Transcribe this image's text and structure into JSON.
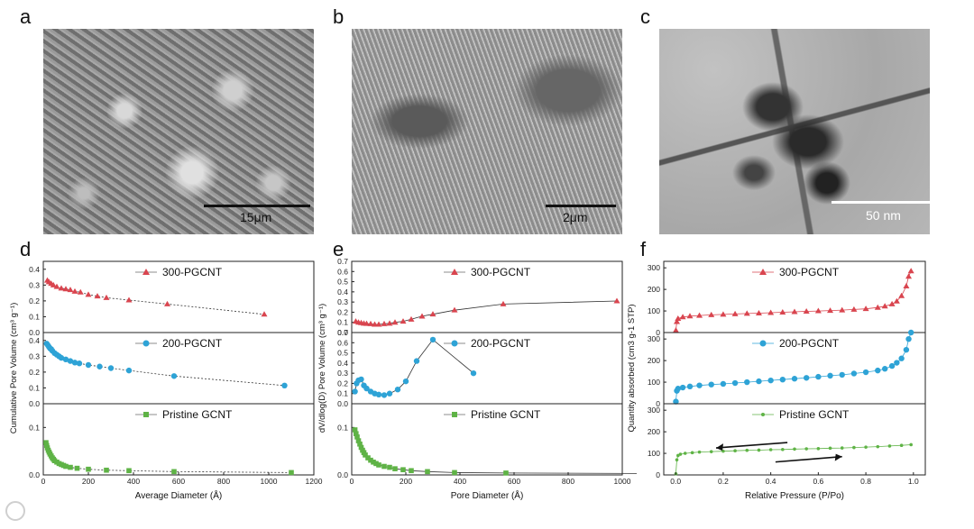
{
  "panels": {
    "a": "a",
    "b": "b",
    "c": "c",
    "d": "d",
    "e": "e",
    "f": "f"
  },
  "images": {
    "a": {
      "scale_label": "15μm",
      "bg": "#8a8a8a"
    },
    "b": {
      "scale_label": "2μm",
      "bg": "#7e7e7e"
    },
    "c": {
      "scale_label": "50 nm",
      "bg": "#b4b4b4"
    }
  },
  "colors": {
    "red": "#d9454f",
    "blue": "#2ea3d6",
    "green": "#5fb346"
  },
  "chart_data": [
    {
      "id": "d",
      "type": "scatter",
      "xlabel": "Average Diameter (Å)",
      "ylabel": "Cumulative Pore Volume (cm³ g⁻¹)",
      "xlim": [
        0,
        1200
      ],
      "xticks": [
        "0",
        "200",
        "400",
        "600",
        "800",
        "1000",
        "1200"
      ],
      "panels": [
        {
          "name": "300-PGCNT",
          "color": "#d9454f",
          "marker": "triangle",
          "ylim": [
            0,
            0.45
          ],
          "yticks": [
            "0.0",
            "0.1",
            "0.2",
            "0.3",
            "0.4"
          ],
          "x": [
            18,
            25,
            35,
            45,
            60,
            80,
            100,
            120,
            140,
            165,
            200,
            240,
            280,
            380,
            550,
            980
          ],
          "y": [
            0.33,
            0.32,
            0.31,
            0.3,
            0.29,
            0.28,
            0.275,
            0.27,
            0.26,
            0.255,
            0.24,
            0.23,
            0.22,
            0.205,
            0.18,
            0.115
          ]
        },
        {
          "name": "200-PGCNT",
          "color": "#2ea3d6",
          "marker": "circle",
          "ylim": [
            0,
            0.45
          ],
          "yticks": [
            "0.0",
            "0.1",
            "0.2",
            "0.3",
            "0.4"
          ],
          "x": [
            15,
            20,
            25,
            30,
            35,
            40,
            50,
            60,
            70,
            80,
            100,
            120,
            140,
            160,
            200,
            250,
            300,
            380,
            580,
            1070
          ],
          "y": [
            0.38,
            0.37,
            0.36,
            0.35,
            0.345,
            0.335,
            0.32,
            0.31,
            0.3,
            0.29,
            0.28,
            0.27,
            0.26,
            0.255,
            0.245,
            0.235,
            0.225,
            0.21,
            0.175,
            0.115
          ]
        },
        {
          "name": "Pristine GCNT",
          "color": "#5fb346",
          "marker": "square",
          "ylim": [
            0,
            0.15
          ],
          "yticks": [
            "0.0",
            "0.1"
          ],
          "x": [
            12,
            15,
            18,
            22,
            26,
            30,
            35,
            40,
            45,
            50,
            60,
            70,
            80,
            90,
            100,
            120,
            150,
            200,
            280,
            380,
            580,
            1100
          ],
          "y": [
            0.068,
            0.062,
            0.057,
            0.052,
            0.048,
            0.044,
            0.04,
            0.036,
            0.033,
            0.03,
            0.027,
            0.024,
            0.022,
            0.02,
            0.018,
            0.016,
            0.014,
            0.012,
            0.01,
            0.009,
            0.007,
            0.005
          ]
        }
      ]
    },
    {
      "id": "e",
      "type": "line",
      "xlabel": "Pore Diameter (Å)",
      "ylabel": "dV/dlog(D) Pore Volume (cm³ g⁻¹)",
      "xlim": [
        0,
        1000
      ],
      "xticks": [
        "0",
        "200",
        "400",
        "600",
        "800",
        "1000"
      ],
      "panels": [
        {
          "name": "300-PGCNT",
          "color": "#d9454f",
          "marker": "triangle",
          "ylim": [
            0,
            0.7
          ],
          "yticks": [
            "0.0",
            "0.1",
            "0.2",
            "0.3",
            "0.4",
            "0.5",
            "0.6",
            "0.7"
          ],
          "x": [
            15,
            25,
            35,
            45,
            55,
            70,
            85,
            100,
            120,
            140,
            160,
            190,
            220,
            260,
            300,
            380,
            560,
            980
          ],
          "y": [
            0.11,
            0.1,
            0.095,
            0.09,
            0.088,
            0.085,
            0.08,
            0.08,
            0.085,
            0.09,
            0.1,
            0.11,
            0.13,
            0.16,
            0.18,
            0.22,
            0.28,
            0.31
          ]
        },
        {
          "name": "200-PGCNT",
          "color": "#2ea3d6",
          "marker": "circle",
          "ylim": [
            0,
            0.7
          ],
          "yticks": [
            "0.0",
            "0.1",
            "0.2",
            "0.3",
            "0.4",
            "0.5",
            "0.6",
            "0.7"
          ],
          "x": [
            12,
            18,
            25,
            35,
            45,
            55,
            70,
            85,
            100,
            120,
            140,
            170,
            200,
            240,
            300,
            450
          ],
          "y": [
            0.12,
            0.2,
            0.23,
            0.24,
            0.18,
            0.15,
            0.12,
            0.1,
            0.09,
            0.085,
            0.1,
            0.14,
            0.22,
            0.42,
            0.63,
            0.3
          ]
        },
        {
          "name": "Pristine GCNT",
          "color": "#5fb346",
          "marker": "square",
          "ylim": [
            0,
            0.15
          ],
          "yticks": [
            "0.0",
            "0.1"
          ],
          "x": [
            12,
            16,
            20,
            25,
            30,
            35,
            40,
            45,
            50,
            60,
            70,
            80,
            90,
            100,
            120,
            140,
            160,
            190,
            220,
            280,
            380,
            570,
            1100
          ],
          "y": [
            0.095,
            0.087,
            0.08,
            0.072,
            0.065,
            0.058,
            0.052,
            0.047,
            0.042,
            0.036,
            0.031,
            0.027,
            0.024,
            0.021,
            0.018,
            0.016,
            0.013,
            0.011,
            0.009,
            0.007,
            0.005,
            0.004,
            0.003
          ]
        }
      ]
    },
    {
      "id": "f",
      "type": "line",
      "xlabel": "Relative Pressure (P/Po)",
      "ylabel": "Quantity absorbed (cm3 g-1 STP)",
      "xlim": [
        -0.05,
        1.05
      ],
      "xticks": [
        "0.0",
        "0.2",
        "0.4",
        "0.6",
        "0.8",
        "1.0"
      ],
      "panels": [
        {
          "name": "300-PGCNT",
          "color": "#d9454f",
          "marker": "triangle",
          "ylim": [
            0,
            330
          ],
          "yticks": [
            "0",
            "100",
            "200",
            "300"
          ],
          "x": [
            0.001,
            0.005,
            0.01,
            0.03,
            0.06,
            0.1,
            0.15,
            0.2,
            0.25,
            0.3,
            0.35,
            0.4,
            0.45,
            0.5,
            0.55,
            0.6,
            0.65,
            0.7,
            0.75,
            0.8,
            0.85,
            0.88,
            0.91,
            0.93,
            0.95,
            0.97,
            0.98,
            0.99
          ],
          "y": [
            10,
            50,
            65,
            72,
            76,
            79,
            82,
            84,
            86,
            88,
            90,
            92,
            94,
            96,
            98,
            100,
            102,
            104,
            107,
            110,
            116,
            122,
            132,
            145,
            170,
            215,
            260,
            285
          ]
        },
        {
          "name": "200-PGCNT",
          "color": "#2ea3d6",
          "marker": "circle",
          "ylim": [
            0,
            330
          ],
          "yticks": [
            "0",
            "100",
            "200",
            "300"
          ],
          "x": [
            0.001,
            0.005,
            0.01,
            0.03,
            0.06,
            0.1,
            0.15,
            0.2,
            0.25,
            0.3,
            0.35,
            0.4,
            0.45,
            0.5,
            0.55,
            0.6,
            0.65,
            0.7,
            0.75,
            0.8,
            0.85,
            0.88,
            0.91,
            0.93,
            0.95,
            0.97,
            0.98,
            0.99
          ],
          "y": [
            10,
            60,
            70,
            75,
            80,
            85,
            89,
            92,
            96,
            100,
            104,
            108,
            112,
            116,
            120,
            125,
            130,
            134,
            140,
            146,
            154,
            162,
            175,
            190,
            210,
            250,
            300,
            330
          ]
        },
        {
          "name": "Pristine GCNT",
          "color": "#5fb346",
          "marker": "dot",
          "ylim": [
            0,
            330
          ],
          "yticks": [
            "0",
            "100",
            "200",
            "300"
          ],
          "x": [
            0.001,
            0.005,
            0.01,
            0.02,
            0.04,
            0.07,
            0.1,
            0.15,
            0.2,
            0.25,
            0.3,
            0.35,
            0.4,
            0.45,
            0.5,
            0.55,
            0.6,
            0.65,
            0.7,
            0.75,
            0.8,
            0.85,
            0.9,
            0.95,
            0.99
          ],
          "y": [
            5,
            70,
            90,
            96,
            100,
            103,
            106,
            108,
            110,
            112,
            114,
            115,
            117,
            118,
            120,
            121,
            122,
            124,
            125,
            127,
            129,
            131,
            134,
            137,
            140
          ]
        }
      ]
    }
  ]
}
